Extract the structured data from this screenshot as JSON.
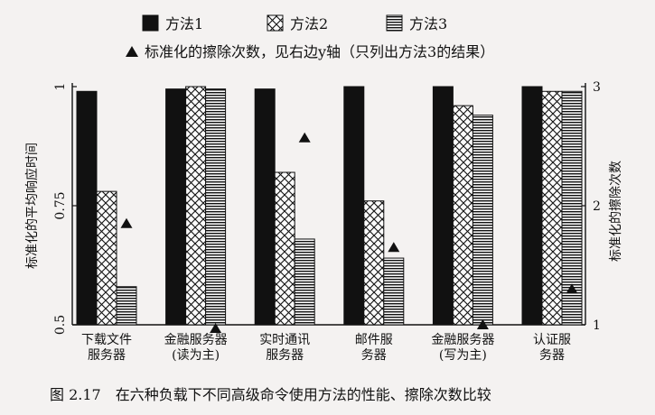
{
  "chart_data": {
    "type": "bar",
    "categories": [
      [
        "下载文件",
        "服务器"
      ],
      [
        "金融服务器",
        "(读为主)"
      ],
      [
        "实时通讯",
        "服务器"
      ],
      [
        "邮件服",
        "务器"
      ],
      [
        "金融服务器",
        "(写为主)"
      ],
      [
        "认证服",
        "务器"
      ]
    ],
    "series": [
      {
        "name": "方法1",
        "pattern": "solid",
        "values": [
          0.99,
          0.995,
          0.995,
          1.0,
          1.0,
          1.0
        ]
      },
      {
        "name": "方法2",
        "pattern": "crosshatch",
        "values": [
          0.78,
          1.0,
          0.82,
          0.76,
          0.96,
          0.99
        ]
      },
      {
        "name": "方法3",
        "pattern": "hlines",
        "values": [
          0.58,
          0.995,
          0.68,
          0.64,
          0.94,
          0.99
        ]
      }
    ],
    "erase_counts": {
      "name": "方法3",
      "marker": "triangle",
      "values": [
        1.85,
        0.97,
        2.57,
        1.65,
        1.0,
        1.3
      ]
    },
    "legend_note": "标准化的擦除次数，见右边y轴（只列出方法3的结果）",
    "ylabel": "标准化的平均响应时间",
    "ylabel_right": "标准化的擦除次数",
    "ylim": [
      0.5,
      1.0
    ],
    "yticks": [
      {
        "value": 0.5,
        "label": "0.5"
      },
      {
        "value": 0.75,
        "label": "0.75"
      },
      {
        "value": 1.0,
        "label": "1"
      }
    ],
    "ylim_right": [
      1,
      3
    ],
    "yticks_right": [
      {
        "value": 1,
        "label": "1"
      },
      {
        "value": 2,
        "label": "2"
      },
      {
        "value": 3,
        "label": "3"
      }
    ],
    "legend_position": "top"
  },
  "caption": "图 2.17　在六种负载下不同高级命令使用方法的性能、擦除次数比较"
}
